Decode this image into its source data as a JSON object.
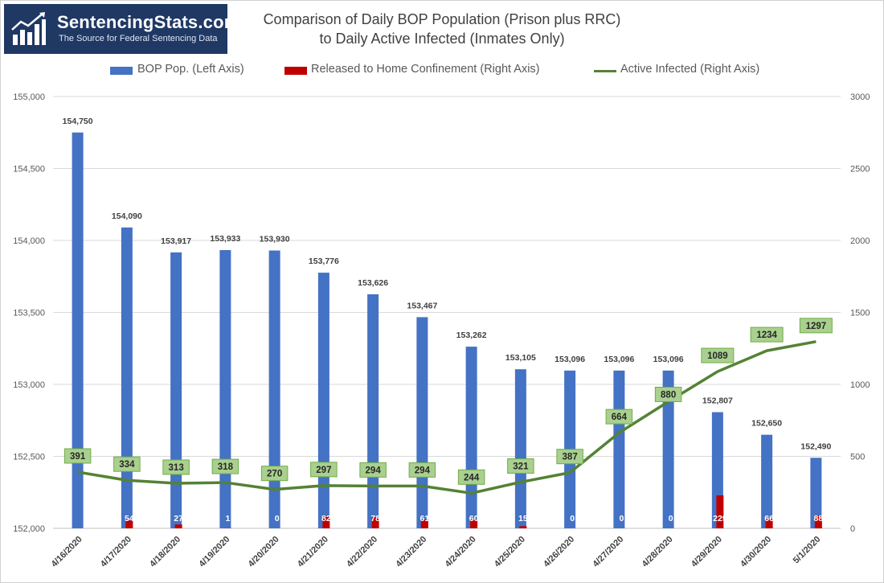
{
  "logo": {
    "name": "SentencingStats.com",
    "tagline": "The Source for Federal Sentencing Data"
  },
  "chart_data": {
    "type": "bar",
    "title_lines": [
      "Comparison of Daily BOP Population (Prison plus RRC)",
      "to Daily Active Infected (Inmates Only)"
    ],
    "categories": [
      "4/16/2020",
      "4/17/2020",
      "4/18/2020",
      "4/19/2020",
      "4/20/2020",
      "4/21/2020",
      "4/22/2020",
      "4/23/2020",
      "4/24/2020",
      "4/25/2020",
      "4/26/2020",
      "4/27/2020",
      "4/28/2020",
      "4/29/2020",
      "4/30/2020",
      "5/1/2020"
    ],
    "left_axis": {
      "min": 152000,
      "max": 155000,
      "ticks": [
        "152,000",
        "152,500",
        "153,000",
        "153,500",
        "154,000",
        "154,500",
        "155,000"
      ]
    },
    "right_axis": {
      "min": 0,
      "max": 3000,
      "ticks": [
        "0",
        "500",
        "1000",
        "1500",
        "2000",
        "2500",
        "3000"
      ]
    },
    "grid": true,
    "legend_position": "top",
    "series": [
      {
        "name": "BOP Pop. (Left Axis)",
        "kind": "bar",
        "axis": "left",
        "color": "#4472c4",
        "values": [
          154750,
          154090,
          153917,
          153933,
          153930,
          153776,
          153626,
          153467,
          153262,
          153105,
          153096,
          153096,
          153096,
          152807,
          152650,
          152490
        ],
        "labels": [
          "154,750",
          "154,090",
          "153,917",
          "153,933",
          "153,930",
          "153,776",
          "153,626",
          "153,467",
          "153,262",
          "153,105",
          "153,096",
          "153,096",
          "153,096",
          "152,807",
          "152,650",
          "152,490"
        ]
      },
      {
        "name": "Released to Home Confinement (Right Axis)",
        "kind": "bar",
        "axis": "right",
        "color": "#c00000",
        "values": [
          null,
          54,
          27,
          1,
          0,
          82,
          78,
          61,
          60,
          15,
          0,
          0,
          0,
          229,
          66,
          88
        ],
        "labels": [
          "",
          "54",
          "27",
          "1",
          "0",
          "82",
          "78",
          "61",
          "60",
          "15",
          "0",
          "0",
          "0",
          "229",
          "66",
          "88"
        ]
      },
      {
        "name": "Active Infected (Right Axis)",
        "kind": "line",
        "axis": "right",
        "color": "#548235",
        "label_fill": "#a9d08e",
        "values": [
          391,
          334,
          313,
          318,
          270,
          297,
          294,
          294,
          244,
          321,
          387,
          664,
          880,
          1089,
          1234,
          1297
        ],
        "labels": [
          "391",
          "334",
          "313",
          "318",
          "270",
          "297",
          "294",
          "294",
          "244",
          "321",
          "387",
          "664",
          "880",
          "1089",
          "1234",
          "1297"
        ]
      }
    ]
  }
}
